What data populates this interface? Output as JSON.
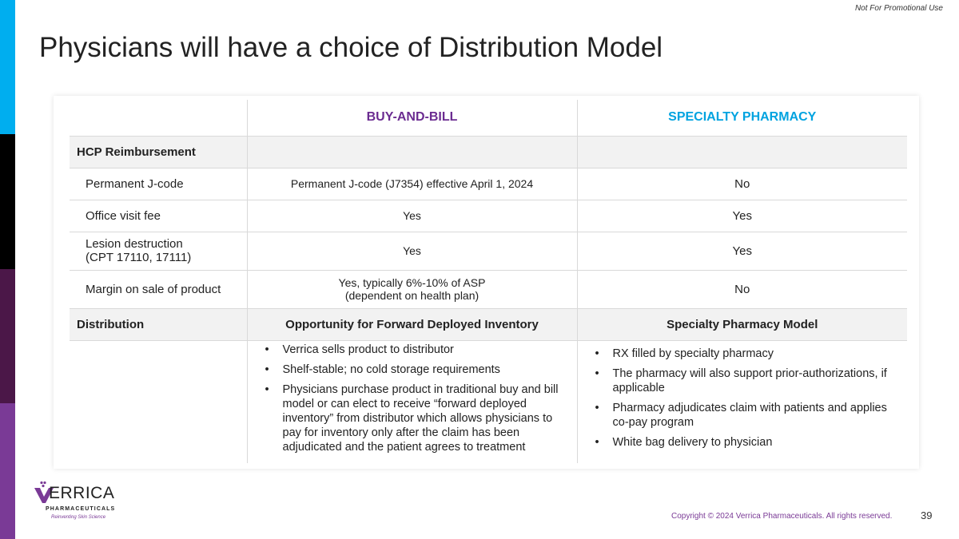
{
  "header": {
    "note": "Not For Promotional Use",
    "title": "Physicians will have a choice of Distribution Model"
  },
  "colors": {
    "bar": [
      "#00AEEF",
      "#000000",
      "#4B1748",
      "#7A3A96"
    ],
    "buy_and_bill": "#6B2C91",
    "specialty": "#00A3E0"
  },
  "table": {
    "columns": [
      "",
      "BUY-AND-BILL",
      "SPECIALTY PHARMACY"
    ],
    "sections": [
      {
        "label": "HCP Reimbursement",
        "rows": [
          {
            "label": "Permanent J-code",
            "buy": "Permanent J-code (J7354) effective April 1, 2024",
            "spec": "No"
          },
          {
            "label": "Office visit fee",
            "buy": "Yes",
            "spec": "Yes"
          },
          {
            "label": "Lesion destruction",
            "label2": "(CPT 17110, 17111)",
            "buy": "Yes",
            "spec": "Yes"
          },
          {
            "label": "Margin on sale of product",
            "buy": "Yes, typically 6%-10% of ASP",
            "buy2": "(dependent on health plan)",
            "spec": "No"
          }
        ]
      },
      {
        "label": "Distribution",
        "buy": "Opportunity for Forward Deployed Inventory",
        "spec": "Specialty Pharmacy Model",
        "buy_bullets": [
          "Verrica sells product to distributor",
          "Shelf-stable; no cold storage requirements",
          "Physicians purchase product in traditional buy and bill model or can elect to receive “forward deployed inventory” from distributor which allows physicians to pay for inventory only after the claim has been adjudicated and the patient agrees to treatment"
        ],
        "spec_bullets": [
          "RX filled by specialty pharmacy",
          "The pharmacy will also support prior-authorizations, if applicable",
          "Pharmacy adjudicates claim with patients and applies co-pay program",
          "White bag delivery to physician"
        ]
      }
    ]
  },
  "footer": {
    "logo_text": "VERRICA",
    "logo_sub": "PHARMACEUTICALS",
    "tagline": "Reinventing Skin Science",
    "copyright": "Copyright © 2024 Verrica Pharmaceuticals. All rights reserved.",
    "page": "39"
  }
}
